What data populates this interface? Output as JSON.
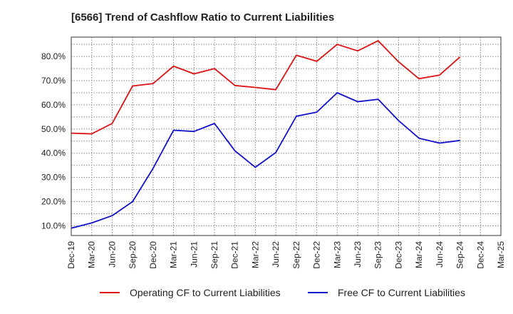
{
  "chart_data": {
    "type": "line",
    "title": "[6566]  Trend of Cashflow Ratio to Current Liabilities",
    "xlabel": "",
    "ylabel": "",
    "categories": [
      "Dec-19",
      "Mar-20",
      "Jun-20",
      "Sep-20",
      "Dec-20",
      "Mar-21",
      "Jun-21",
      "Sep-21",
      "Dec-21",
      "Mar-22",
      "Jun-22",
      "Sep-22",
      "Dec-22",
      "Mar-23",
      "Jun-23",
      "Sep-23",
      "Dec-23",
      "Mar-24",
      "Jun-24",
      "Sep-24",
      "Dec-24",
      "Mar-25"
    ],
    "ylim": [
      6,
      88
    ],
    "yticks": [
      10,
      20,
      30,
      40,
      50,
      60,
      70,
      80
    ],
    "ytick_labels": [
      "10.0%",
      "20.0%",
      "30.0%",
      "40.0%",
      "50.0%",
      "60.0%",
      "70.0%",
      "80.0%"
    ],
    "grid": true,
    "legend_position": "bottom",
    "series": [
      {
        "name": "Operating CF to Current Liabilities",
        "color": "#dd1111",
        "values": [
          48.3,
          48.0,
          52.3,
          67.8,
          68.8,
          76.0,
          72.8,
          75.0,
          68.0,
          67.2,
          66.3,
          80.5,
          78.0,
          85.0,
          82.3,
          86.5,
          77.8,
          70.8,
          72.3,
          79.8,
          null,
          null
        ]
      },
      {
        "name": "Free CF to Current Liabilities",
        "color": "#1111cc",
        "values": [
          9.0,
          11.2,
          14.2,
          20.0,
          33.8,
          49.5,
          49.0,
          52.3,
          41.0,
          34.2,
          40.3,
          55.3,
          57.0,
          65.0,
          61.3,
          62.3,
          53.5,
          46.2,
          44.2,
          45.3,
          null,
          null
        ]
      }
    ]
  }
}
